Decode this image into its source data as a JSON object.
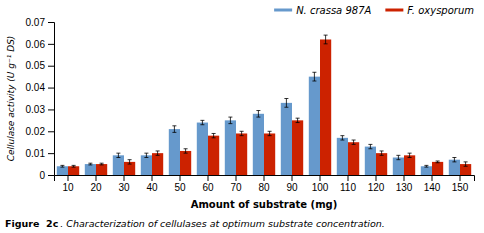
{
  "chart_data": {
    "type": "bar",
    "categories": [
      10,
      20,
      30,
      40,
      50,
      60,
      70,
      80,
      90,
      100,
      110,
      120,
      130,
      140,
      150
    ],
    "series": [
      {
        "name": "N. crassa 987A",
        "color": "#6699CC",
        "values": [
          0.004,
          0.005,
          0.009,
          0.009,
          0.021,
          0.024,
          0.025,
          0.028,
          0.033,
          0.045,
          0.017,
          0.013,
          0.008,
          0.004,
          0.007
        ],
        "errors": [
          0.0004,
          0.0004,
          0.001,
          0.001,
          0.0015,
          0.001,
          0.0015,
          0.0015,
          0.002,
          0.002,
          0.001,
          0.001,
          0.001,
          0.0004,
          0.001
        ]
      },
      {
        "name": "F. oxysporum",
        "color": "#CC2200",
        "values": [
          0.004,
          0.005,
          0.006,
          0.01,
          0.011,
          0.018,
          0.019,
          0.019,
          0.025,
          0.062,
          0.015,
          0.01,
          0.009,
          0.006,
          0.005
        ],
        "errors": [
          0.0004,
          0.0004,
          0.001,
          0.001,
          0.001,
          0.001,
          0.001,
          0.001,
          0.001,
          0.002,
          0.001,
          0.001,
          0.001,
          0.0004,
          0.001
        ]
      }
    ],
    "xlabel": "Amount of substrate (mg)",
    "ylabel": "Cellulase activity (U g⁻¹ DS)",
    "ylim": [
      0,
      0.07
    ],
    "yticks": [
      0,
      0.01,
      0.02,
      0.03,
      0.04,
      0.05,
      0.06,
      0.07
    ],
    "legend": "upper right",
    "grid": false,
    "annotations": [
      "Figure  2c",
      ". Characterization of cellulases at optimum substrate concentration."
    ]
  }
}
